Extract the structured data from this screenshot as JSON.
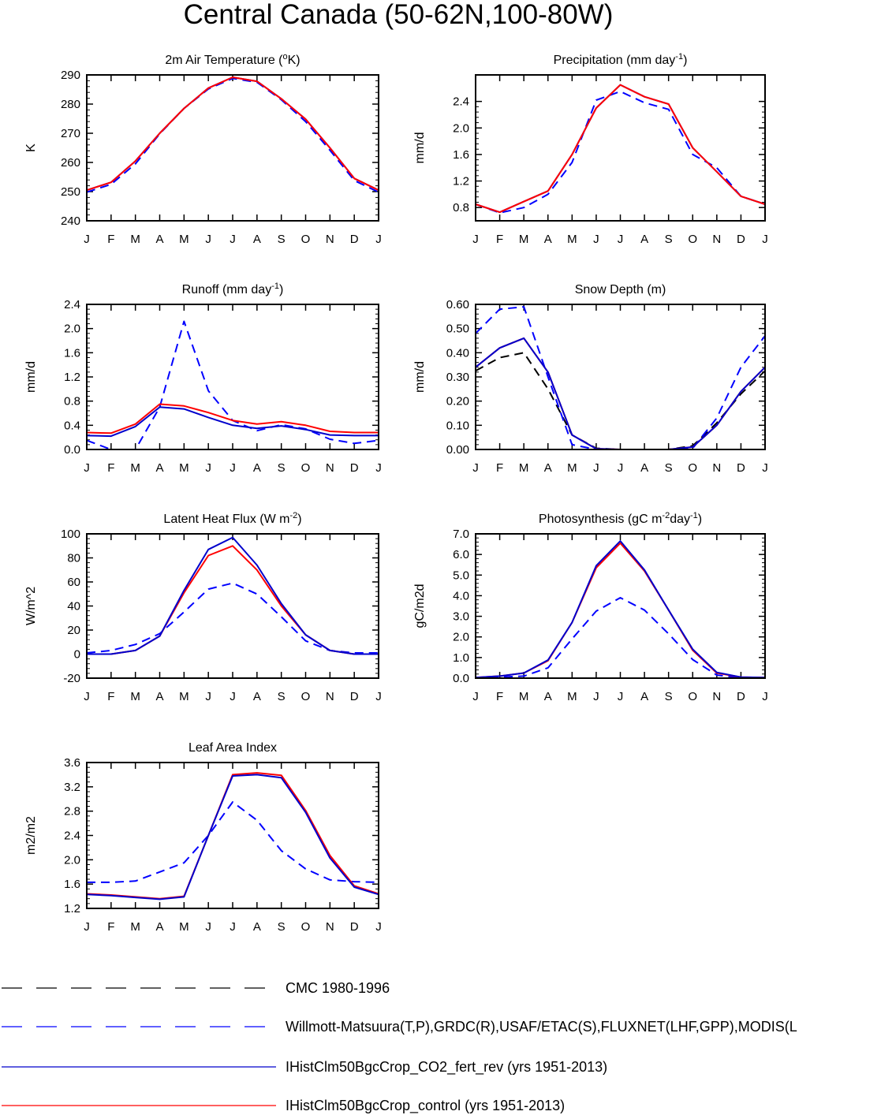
{
  "page_title": "Central Canada (50-62N,100-80W)",
  "months": [
    "J",
    "F",
    "M",
    "A",
    "M",
    "J",
    "J",
    "A",
    "S",
    "O",
    "N",
    "D",
    "J"
  ],
  "colors": {
    "obs": "#0000ff",
    "cmc": "#000000",
    "fert": "#0000cc",
    "control": "#ff0000"
  },
  "legend": [
    {
      "label": "CMC 1980-1996",
      "color": "#000000",
      "dash": true
    },
    {
      "label": "Willmott-Matsuura(T,P),GRDC(R),USAF/ETAC(S),FLUXNET(LHF,GPP),MODIS(L",
      "color": "#0000ff",
      "dash": true
    },
    {
      "label": "IHistClm50BgcCrop_CO2_fert_rev (yrs 1951-2013)",
      "color": "#0000cc",
      "dash": false
    },
    {
      "label": "IHistClm50BgcCrop_control (yrs 1951-2013)",
      "color": "#ff0000",
      "dash": false
    }
  ],
  "chart_data": [
    {
      "type": "line",
      "title": {
        "base": "2m Air Temperature (",
        "sup": "o",
        "tail": "K)"
      },
      "ylabel": "K",
      "ylim": [
        240,
        290
      ],
      "yticks": [
        240,
        250,
        260,
        270,
        280,
        290
      ],
      "ytick_labels": [
        "240",
        "250",
        "260",
        "270",
        "280",
        "290"
      ],
      "series": [
        {
          "role": "obs",
          "values": [
            249.8,
            252.5,
            259.5,
            269.8,
            278.5,
            285.2,
            288.8,
            287.5,
            281.5,
            274.0,
            264.2,
            253.8,
            249.8
          ]
        },
        {
          "role": "fert",
          "values": [
            250.5,
            253.2,
            260.5,
            270.0,
            278.5,
            285.5,
            289.2,
            287.8,
            281.8,
            274.8,
            265.0,
            254.5,
            250.5
          ]
        },
        {
          "role": "control",
          "values": [
            250.5,
            253.2,
            260.5,
            270.0,
            278.5,
            285.5,
            289.2,
            287.8,
            281.8,
            274.8,
            265.0,
            254.5,
            250.5
          ]
        }
      ]
    },
    {
      "type": "line",
      "title": {
        "base": "Precipitation (mm day",
        "sup": "-1",
        "tail": ")"
      },
      "ylabel": "mm/d",
      "ylim": [
        0.6,
        2.8
      ],
      "yticks": [
        0.8,
        1.2,
        1.6,
        2.0,
        2.4
      ],
      "ytick_labels": [
        "0.8",
        "1.2",
        "1.6",
        "2.0",
        "2.4"
      ],
      "series": [
        {
          "role": "obs",
          "values": [
            0.85,
            0.72,
            0.8,
            1.0,
            1.48,
            2.42,
            2.55,
            2.38,
            2.28,
            1.6,
            1.4,
            0.97,
            0.85
          ]
        },
        {
          "role": "fert",
          "values": [
            0.85,
            0.73,
            0.89,
            1.05,
            1.6,
            2.3,
            2.65,
            2.47,
            2.36,
            1.7,
            1.34,
            0.97,
            0.85
          ]
        },
        {
          "role": "control",
          "values": [
            0.85,
            0.73,
            0.89,
            1.05,
            1.6,
            2.3,
            2.65,
            2.47,
            2.36,
            1.7,
            1.34,
            0.97,
            0.85
          ]
        }
      ]
    },
    {
      "type": "line",
      "title": {
        "base": "Runoff (mm day",
        "sup": "-1",
        "tail": ")"
      },
      "ylabel": "mm/d",
      "ylim": [
        0.0,
        2.4
      ],
      "yticks": [
        0.0,
        0.4,
        0.8,
        1.2,
        1.6,
        2.0,
        2.4
      ],
      "ytick_labels": [
        "0.0",
        "0.4",
        "0.8",
        "1.2",
        "1.6",
        "2.0",
        "2.4"
      ],
      "series": [
        {
          "role": "obs",
          "values": [
            0.15,
            0.0,
            0.0,
            0.7,
            2.12,
            0.97,
            0.48,
            0.31,
            0.41,
            0.34,
            0.17,
            0.1,
            0.15
          ]
        },
        {
          "role": "control",
          "values": [
            0.28,
            0.27,
            0.42,
            0.75,
            0.72,
            0.61,
            0.48,
            0.42,
            0.46,
            0.4,
            0.3,
            0.28,
            0.28
          ]
        },
        {
          "role": "fert",
          "values": [
            0.23,
            0.22,
            0.38,
            0.7,
            0.67,
            0.53,
            0.4,
            0.35,
            0.39,
            0.33,
            0.24,
            0.23,
            0.23
          ]
        }
      ]
    },
    {
      "type": "line",
      "title": {
        "base": "Snow Depth (m)",
        "sup": "",
        "tail": ""
      },
      "ylabel": "mm/d",
      "ylim": [
        0.0,
        0.6
      ],
      "yticks": [
        0.0,
        0.1,
        0.2,
        0.3,
        0.4,
        0.5,
        0.6
      ],
      "ytick_labels": [
        "0.00",
        "0.10",
        "0.20",
        "0.30",
        "0.40",
        "0.50",
        "0.60"
      ],
      "series": [
        {
          "role": "cmc",
          "values": [
            0.325,
            0.38,
            0.4,
            0.25,
            0.06,
            0.005,
            0.0,
            0.0,
            0.0,
            0.015,
            0.11,
            0.23,
            0.325
          ]
        },
        {
          "role": "obs",
          "values": [
            0.48,
            0.58,
            0.59,
            0.3,
            0.02,
            0.0,
            0.0,
            0.0,
            0.0,
            0.005,
            0.13,
            0.34,
            0.47
          ]
        },
        {
          "role": "control",
          "values": [
            0.34,
            0.42,
            0.46,
            0.32,
            0.06,
            0.003,
            0.0,
            0.0,
            0.0,
            0.01,
            0.1,
            0.24,
            0.34
          ]
        },
        {
          "role": "fert",
          "values": [
            0.34,
            0.42,
            0.46,
            0.32,
            0.06,
            0.003,
            0.0,
            0.0,
            0.0,
            0.01,
            0.1,
            0.24,
            0.34
          ]
        }
      ]
    },
    {
      "type": "line",
      "title": {
        "base": "Latent Heat Flux (W m",
        "sup": "-2",
        "tail": ")"
      },
      "ylabel": "W/m^2",
      "ylim": [
        -20,
        100
      ],
      "yticks": [
        -20,
        0,
        20,
        40,
        60,
        80,
        100
      ],
      "ytick_labels": [
        "-20",
        "0",
        "20",
        "40",
        "60",
        "80",
        "100"
      ],
      "series": [
        {
          "role": "obs",
          "values": [
            1,
            3,
            8,
            17,
            35,
            54,
            59,
            50,
            31,
            11,
            3,
            1,
            1
          ]
        },
        {
          "role": "control",
          "values": [
            0,
            0,
            3,
            15,
            51,
            82,
            90,
            70,
            40,
            16,
            3,
            0,
            0
          ]
        },
        {
          "role": "fert",
          "values": [
            0,
            0,
            3,
            15,
            53,
            87,
            97,
            74,
            42,
            16,
            3,
            0,
            0
          ]
        }
      ]
    },
    {
      "type": "line",
      "title": {
        "base": "Photosynthesis (gC m",
        "sup": "-2",
        "tail": "day",
        "sup2": "-1",
        "tail2": ")"
      },
      "ylabel": "gC/m2d",
      "ylim": [
        0.0,
        7.0
      ],
      "yticks": [
        0,
        1,
        2,
        3,
        4,
        5,
        6,
        7
      ],
      "ytick_labels": [
        "0.0",
        "1.0",
        "2.0",
        "3.0",
        "4.0",
        "5.0",
        "6.0",
        "7.0"
      ],
      "series": [
        {
          "role": "obs",
          "values": [
            0.02,
            0.05,
            0.1,
            0.5,
            1.9,
            3.25,
            3.9,
            3.3,
            2.15,
            0.9,
            0.15,
            0.02,
            0.02
          ]
        },
        {
          "role": "control",
          "values": [
            0.03,
            0.1,
            0.25,
            0.85,
            2.7,
            5.35,
            6.55,
            5.2,
            3.3,
            1.35,
            0.25,
            0.05,
            0.03
          ]
        },
        {
          "role": "fert",
          "values": [
            0.03,
            0.1,
            0.25,
            0.88,
            2.7,
            5.45,
            6.65,
            5.25,
            3.3,
            1.4,
            0.28,
            0.05,
            0.03
          ]
        }
      ]
    },
    {
      "type": "line",
      "title": {
        "base": "Leaf Area Index",
        "sup": "",
        "tail": ""
      },
      "ylabel": "m2/m2",
      "ylim": [
        1.2,
        3.6
      ],
      "yticks": [
        1.2,
        1.6,
        2.0,
        2.4,
        2.8,
        3.2,
        3.6
      ],
      "ytick_labels": [
        "1.2",
        "1.6",
        "2.0",
        "2.4",
        "2.8",
        "3.2",
        "3.6"
      ],
      "series": [
        {
          "role": "obs",
          "values": [
            1.63,
            1.63,
            1.65,
            1.8,
            1.95,
            2.4,
            2.95,
            2.65,
            2.15,
            1.85,
            1.67,
            1.64,
            1.63
          ]
        },
        {
          "role": "control",
          "values": [
            1.44,
            1.42,
            1.39,
            1.36,
            1.4,
            2.4,
            3.4,
            3.43,
            3.39,
            2.81,
            2.07,
            1.57,
            1.44
          ]
        },
        {
          "role": "fert",
          "values": [
            1.43,
            1.41,
            1.38,
            1.35,
            1.39,
            2.4,
            3.38,
            3.4,
            3.35,
            2.78,
            2.03,
            1.55,
            1.43
          ]
        }
      ]
    }
  ]
}
